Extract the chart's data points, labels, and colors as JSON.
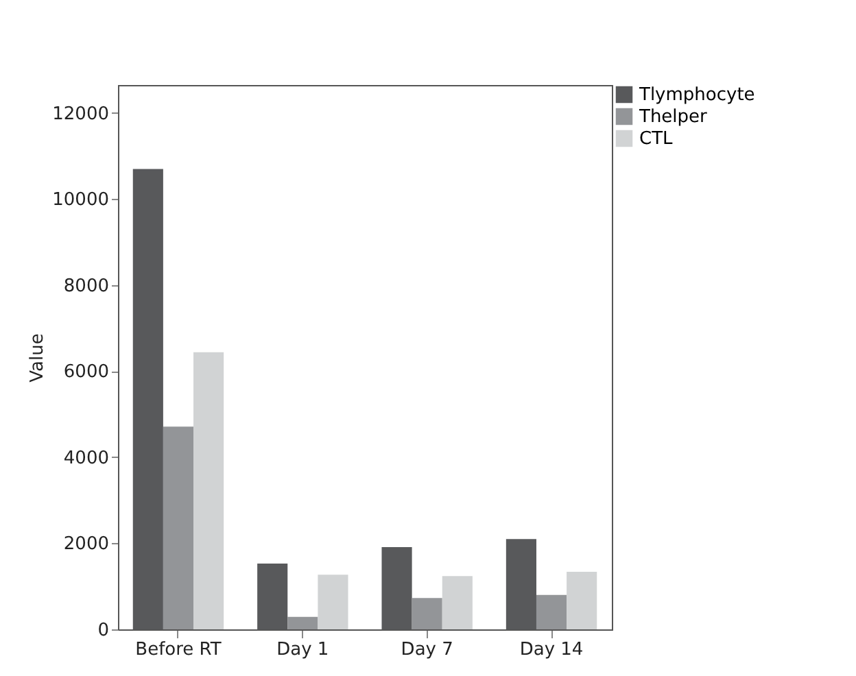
{
  "chart_data": {
    "type": "bar",
    "ylabel": "Value",
    "categories": [
      "Before RT",
      "Day 1",
      "Day 7",
      "Day 14"
    ],
    "series": [
      {
        "name": "Tlymphocyte",
        "color": "#58595b",
        "values": [
          10700,
          1530,
          1910,
          2100
        ]
      },
      {
        "name": "Thelper",
        "color": "#939598",
        "values": [
          4710,
          290,
          730,
          800
        ]
      },
      {
        "name": "CTL",
        "color": "#d1d3d4",
        "values": [
          6440,
          1270,
          1240,
          1340
        ]
      }
    ],
    "ylim": [
      0,
      12650
    ],
    "yticks": [
      0,
      2000,
      4000,
      6000,
      8000,
      10000,
      12000
    ],
    "grid": false,
    "legend": "top right"
  }
}
